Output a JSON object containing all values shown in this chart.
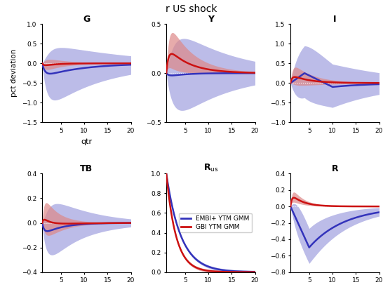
{
  "title": "r US shock",
  "blue_color": "#3333bb",
  "red_color": "#cc1111",
  "blue_fill": "#9999dd",
  "red_fill": "#dd8888",
  "panels": {
    "G": {
      "ylim": [
        -1.5,
        1.0
      ],
      "yticks": [
        -1.5,
        -1.0,
        -0.5,
        0.0,
        0.5,
        1.0
      ],
      "ylabel": "pct deviation",
      "xlabel": "qtr"
    },
    "Y": {
      "ylim": [
        -0.5,
        0.5
      ],
      "yticks": [
        -0.5,
        0.0,
        0.5
      ],
      "ylabel": "",
      "xlabel": ""
    },
    "I": {
      "ylim": [
        -1.0,
        1.5
      ],
      "yticks": [
        -1.0,
        -0.5,
        0.0,
        0.5,
        1.0,
        1.5
      ],
      "ylabel": "",
      "xlabel": ""
    },
    "TB": {
      "ylim": [
        -0.4,
        0.4
      ],
      "yticks": [
        -0.4,
        -0.2,
        0.0,
        0.2,
        0.4
      ],
      "ylabel": "",
      "xlabel": ""
    },
    "Rus": {
      "ylim": [
        0.0,
        1.0
      ],
      "yticks": [
        0.0,
        0.2,
        0.4,
        0.6,
        0.8,
        1.0
      ],
      "ylabel": "",
      "xlabel": ""
    },
    "R": {
      "ylim": [
        -0.8,
        0.4
      ],
      "yticks": [
        -0.8,
        -0.6,
        -0.4,
        -0.2,
        0.0,
        0.2,
        0.4
      ],
      "ylabel": "",
      "xlabel": ""
    }
  }
}
